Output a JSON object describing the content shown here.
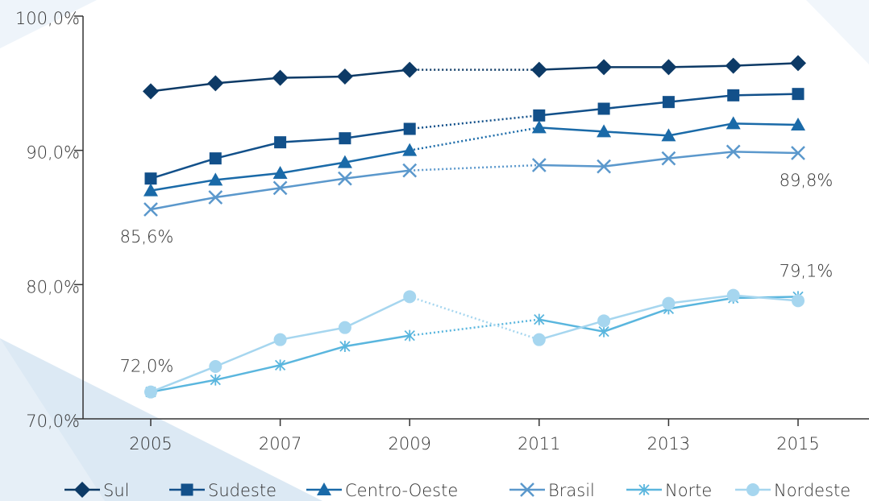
{
  "chart_data": {
    "type": "line",
    "x": [
      2005,
      2006,
      2007,
      2008,
      2009,
      2011,
      2012,
      2013,
      2014,
      2015
    ],
    "xlim": [
      2005,
      2015
    ],
    "xticks": [
      2005,
      2007,
      2009,
      2011,
      2013,
      2015
    ],
    "ylim": [
      70,
      100
    ],
    "yticks": [
      {
        "value": 70,
        "label": "70,0%"
      },
      {
        "value": 80,
        "label": "80,0%"
      },
      {
        "value": 90,
        "label": "90,0%"
      },
      {
        "value": 100,
        "label": "100,0%"
      }
    ],
    "legend": "bottom",
    "series": [
      {
        "name": "Sul",
        "color": "#0d3a66",
        "marker": "diamond",
        "values": [
          94.4,
          95.0,
          95.4,
          95.5,
          96.0,
          96.0,
          96.2,
          96.2,
          96.3,
          96.5
        ]
      },
      {
        "name": "Sudeste",
        "color": "#12508a",
        "marker": "square",
        "values": [
          87.9,
          89.4,
          90.6,
          90.9,
          91.6,
          92.6,
          93.1,
          93.6,
          94.1,
          94.2
        ]
      },
      {
        "name": "Centro-Oeste",
        "color": "#1a6aa8",
        "marker": "triangle",
        "values": [
          87.0,
          87.8,
          88.3,
          89.1,
          90.0,
          91.7,
          91.4,
          91.1,
          92.0,
          91.9
        ]
      },
      {
        "name": "Brasil",
        "color": "#5b98cc",
        "marker": "x",
        "values": [
          85.6,
          86.5,
          87.2,
          87.9,
          88.5,
          88.9,
          88.8,
          89.4,
          89.9,
          89.8
        ],
        "value_labels": [
          "85,6%",
          null,
          null,
          null,
          null,
          null,
          null,
          null,
          null,
          "89,8%"
        ]
      },
      {
        "name": "Norte",
        "color": "#5ab6de",
        "marker": "asterisk",
        "values": [
          72.0,
          72.9,
          74.0,
          75.4,
          76.2,
          77.4,
          76.5,
          78.2,
          79.0,
          79.1
        ],
        "value_labels": [
          "72,0%",
          null,
          null,
          null,
          null,
          null,
          null,
          null,
          null,
          "79,1%"
        ]
      },
      {
        "name": "Nordeste",
        "color": "#a6d6ef",
        "marker": "circle",
        "values": [
          72.0,
          73.9,
          75.9,
          76.8,
          79.1,
          75.9,
          77.3,
          78.6,
          79.2,
          78.8
        ]
      }
    ]
  }
}
